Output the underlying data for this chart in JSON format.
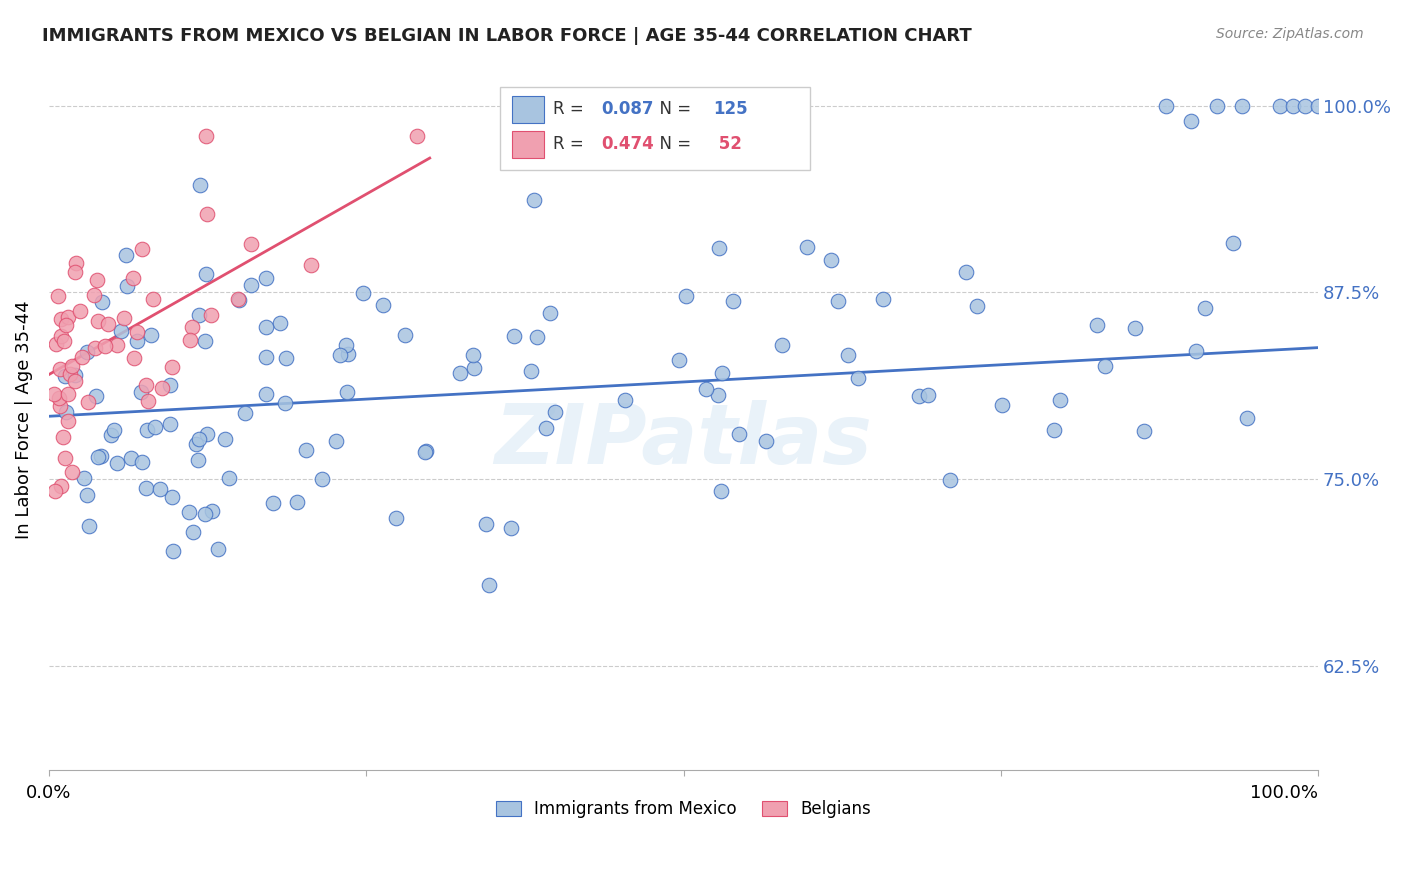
{
  "title": "IMMIGRANTS FROM MEXICO VS BELGIAN IN LABOR FORCE | AGE 35-44 CORRELATION CHART",
  "source": "Source: ZipAtlas.com",
  "ylabel": "In Labor Force | Age 35-44",
  "ytick_labels": [
    "100.0%",
    "87.5%",
    "75.0%",
    "62.5%"
  ],
  "ytick_values": [
    1.0,
    0.875,
    0.75,
    0.625
  ],
  "xlim": [
    0.0,
    1.0
  ],
  "ylim": [
    0.555,
    1.025
  ],
  "legend_blue_R": "0.087",
  "legend_blue_N": "125",
  "legend_pink_R": "0.474",
  "legend_pink_N": " 52",
  "watermark": "ZIPatlas",
  "blue_color": "#a8c4e0",
  "pink_color": "#f0a0b0",
  "trendline_blue": "#4472c4",
  "trendline_pink": "#e05070",
  "blue_trend_y_start": 0.792,
  "blue_trend_y_end": 0.838,
  "pink_trend_x_end": 0.3,
  "pink_trend_y_start": 0.82,
  "pink_trend_y_end": 0.965
}
